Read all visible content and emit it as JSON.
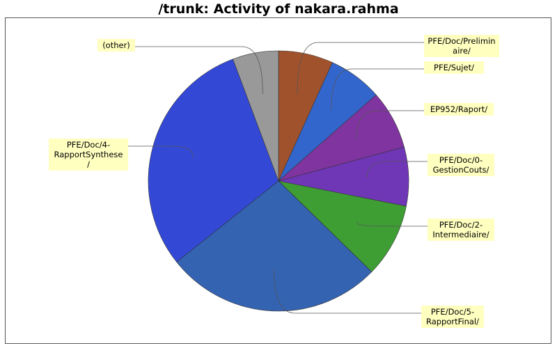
{
  "chart_data": {
    "type": "pie",
    "title": "/trunk: Activity of nakara.rahma",
    "slices": [
      {
        "label": "PFE/Doc/Preliminaire/",
        "display": "PFE/Doc/Prelimin\naire/",
        "value": 6.8,
        "color": "#a0522d"
      },
      {
        "label": "PFE/Sujet/",
        "display": "PFE/Sujet/",
        "value": 6.7,
        "color": "#3366cc"
      },
      {
        "label": "EP952/Raport/",
        "display": "EP952/Raport/",
        "value": 7.3,
        "color": "#8034a0"
      },
      {
        "label": "PFE/Doc/0-GestionCouts/",
        "display": "PFE/Doc/0-\nGestionCouts/",
        "value": 7.3,
        "color": "#6f36b6"
      },
      {
        "label": "PFE/Doc/2-Intermediaire/",
        "display": "PFE/Doc/2-\nIntermediaire/",
        "value": 9.2,
        "color": "#3e9e34"
      },
      {
        "label": "PFE/Doc/5-RapportFinal/",
        "display": "PFE/Doc/5-\nRapportFinal/",
        "value": 27.0,
        "color": "#3463b2"
      },
      {
        "label": "PFE/Doc/4-RapportSynthese/",
        "display": "PFE/Doc/4-\nRapportSynthese\n/",
        "value": 30.0,
        "color": "#3349d6"
      },
      {
        "label": "(other)",
        "display": "(other)",
        "value": 5.7,
        "color": "#999999"
      }
    ]
  }
}
